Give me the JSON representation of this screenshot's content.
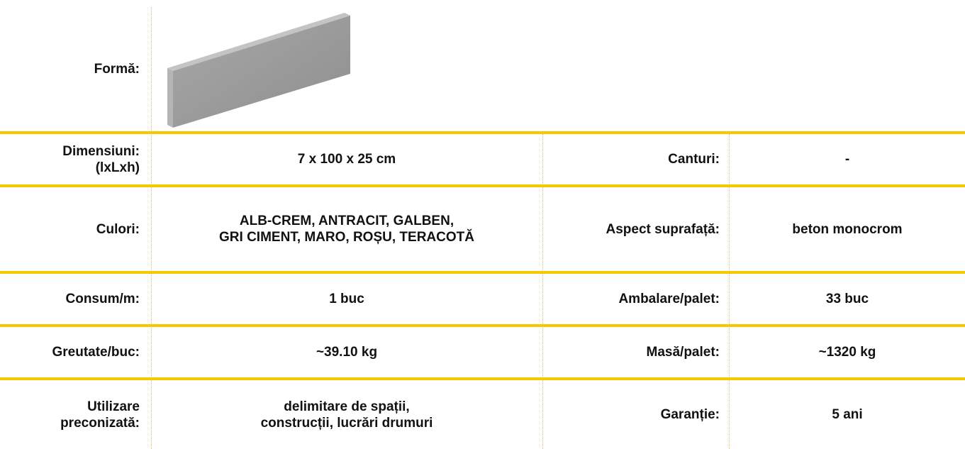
{
  "form": {
    "label": [
      "Formă:"
    ]
  },
  "rows": [
    {
      "label": [
        "Dimensiuni:",
        "(lxLxh)"
      ],
      "value": [
        "7 x 100 x 25 cm"
      ],
      "label2": [
        "Canturi:"
      ],
      "value2": [
        "-"
      ]
    },
    {
      "label": [
        "Culori:"
      ],
      "value": [
        "ALB-CREM, ANTRACIT, GALBEN,",
        "GRI CIMENT, MARO, ROȘU, TERACOTĂ"
      ],
      "label2": [
        "Aspect suprafață:"
      ],
      "value2": [
        "beton monocrom"
      ]
    },
    {
      "label": [
        "Consum/m:"
      ],
      "value": [
        "1 buc"
      ],
      "label2": [
        "Ambalare/palet:"
      ],
      "value2": [
        "33 buc"
      ]
    },
    {
      "label": [
        "Greutate/buc:"
      ],
      "value": [
        "~39.10 kg"
      ],
      "label2": [
        "Masă/palet:"
      ],
      "value2": [
        "~1320 kg"
      ]
    },
    {
      "label": [
        "Utilizare",
        "preconizată:"
      ],
      "value": [
        "delimitare de spații,",
        "construcții, lucrări drumuri"
      ],
      "label2": [
        "Garanție:"
      ],
      "value2": [
        "5 ani"
      ]
    }
  ]
}
